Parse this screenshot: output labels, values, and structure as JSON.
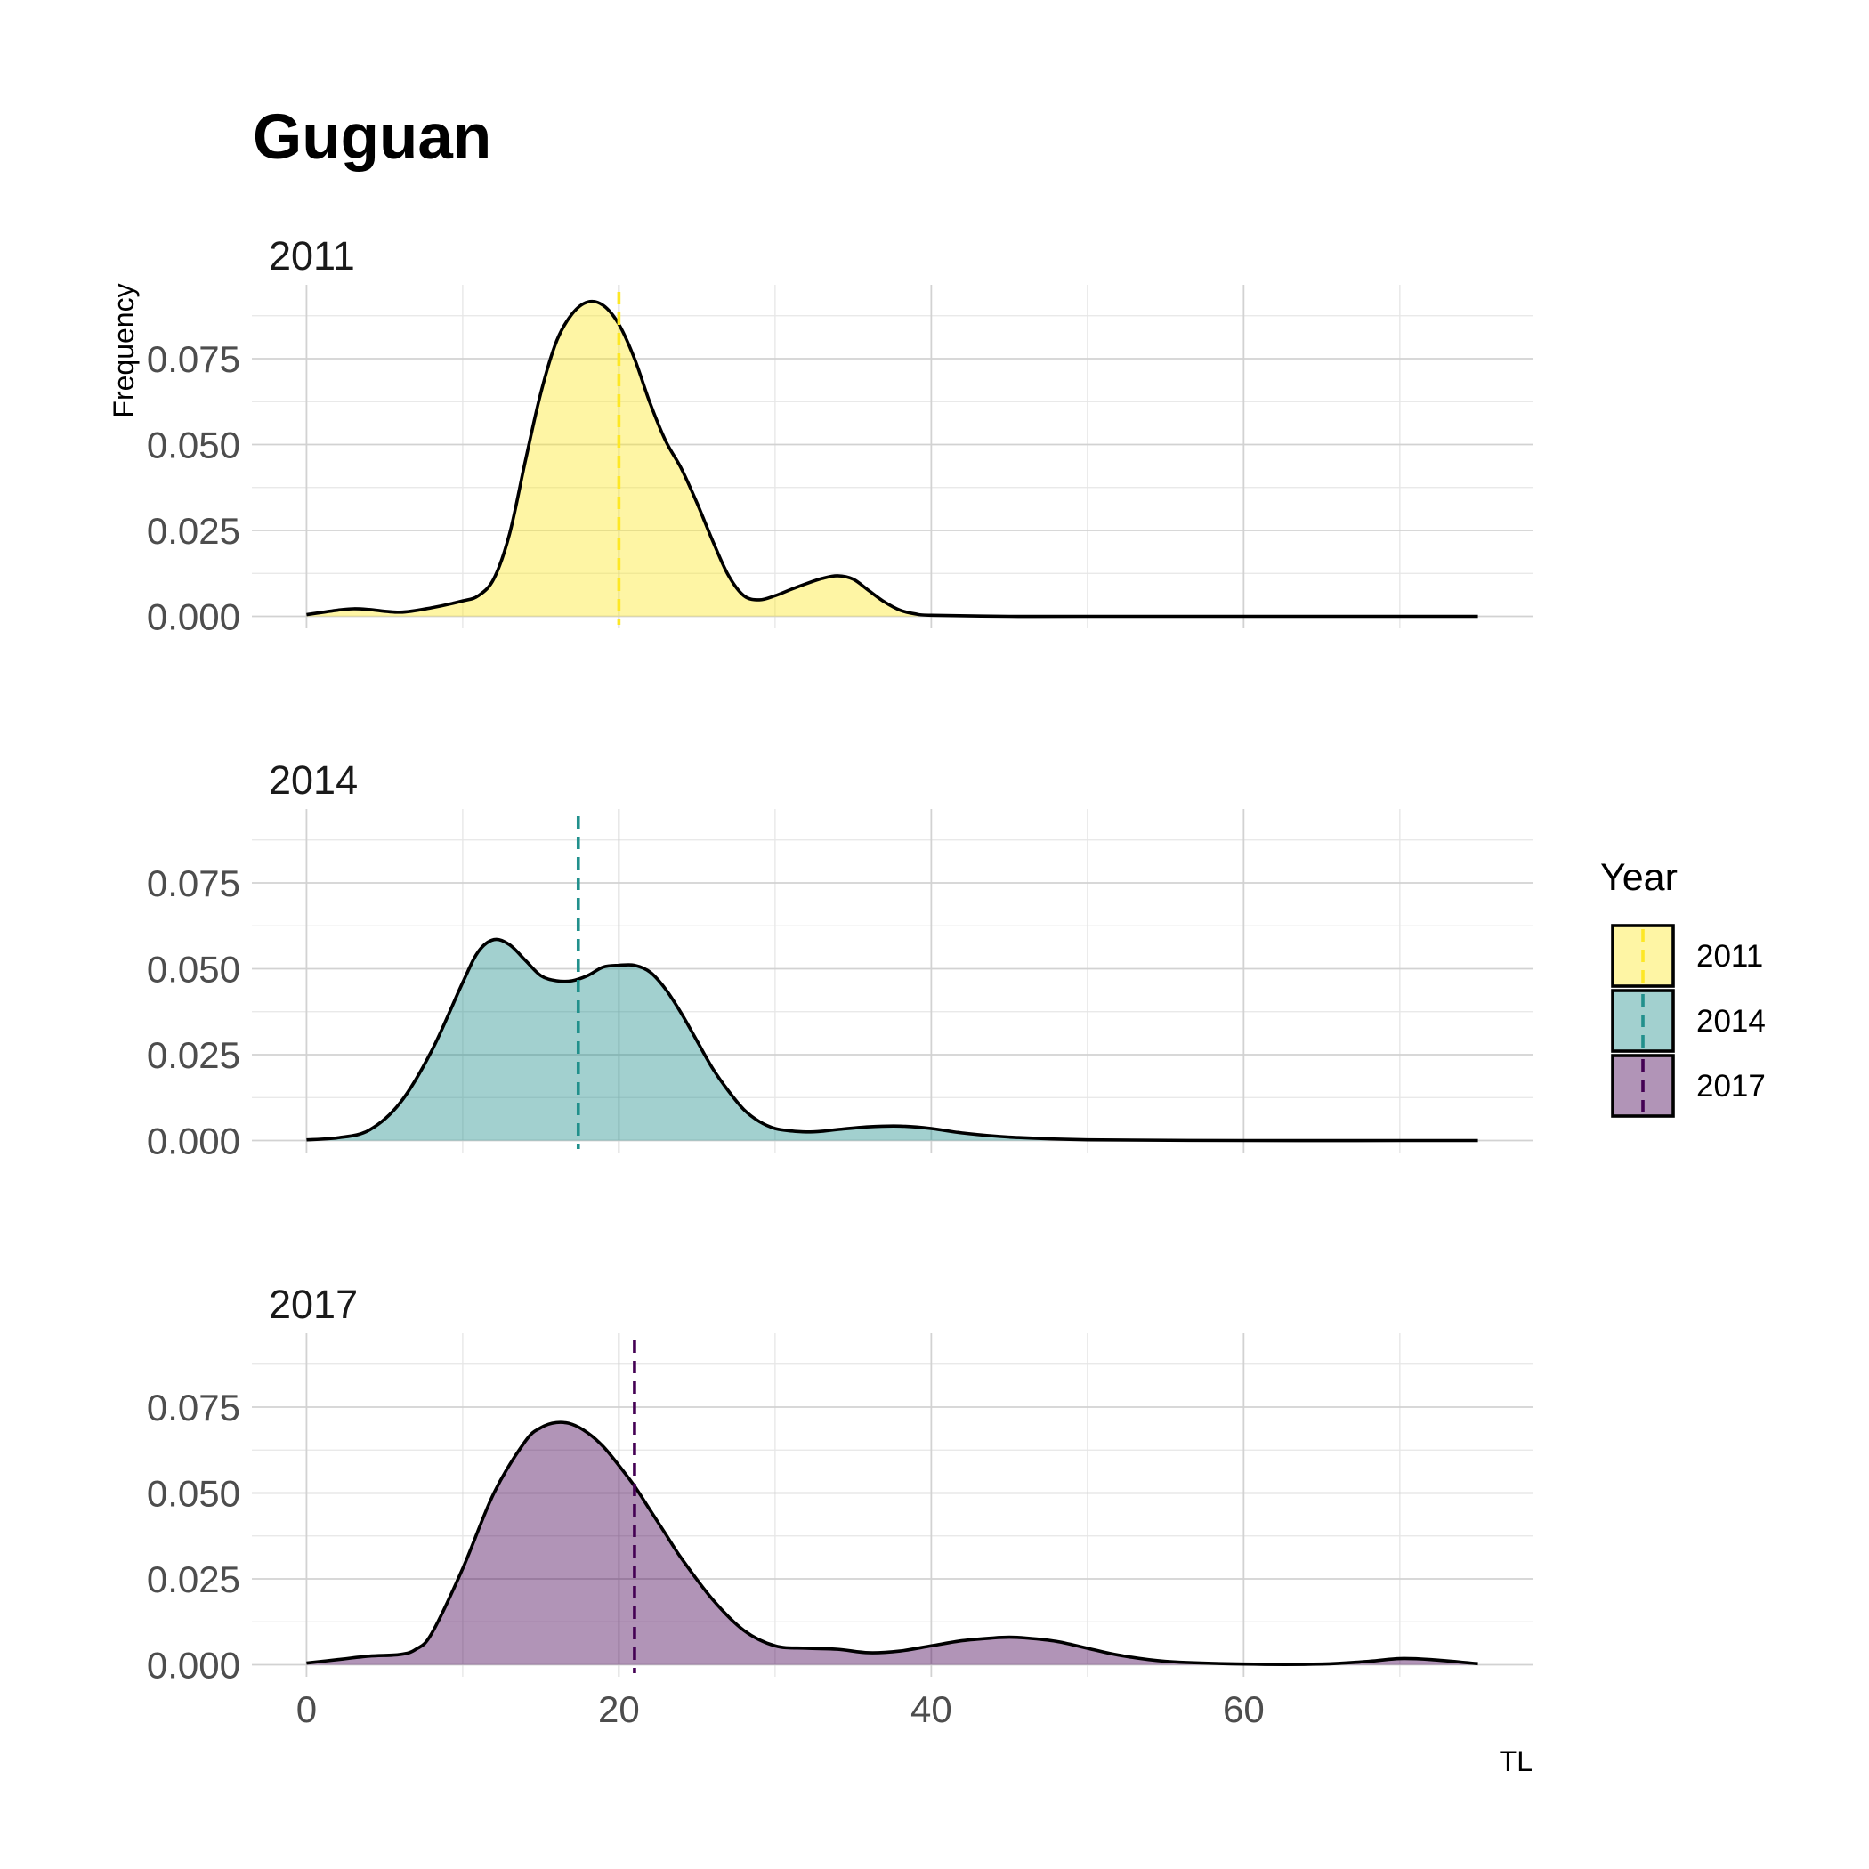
{
  "chart_data": {
    "type": "area",
    "title": "Guguan",
    "xlabel": "TL",
    "ylabel": "Frequency",
    "xlim": [
      -3.5,
      78.5
    ],
    "ylim": [
      -0.0035,
      0.0965
    ],
    "x_ticks": [
      0,
      20,
      40,
      60
    ],
    "y_ticks": [
      0.0,
      0.025,
      0.05,
      0.075
    ],
    "y_tick_labels": [
      "0.000",
      "0.025",
      "0.050",
      "0.075"
    ],
    "grid": true,
    "legend": {
      "title": "Year",
      "position": "right",
      "entries": [
        "2011",
        "2014",
        "2017"
      ]
    },
    "panels": [
      {
        "label": "2011",
        "fill": "#FDE725",
        "mean_line_color": "#FDE725",
        "mean_TL": 20.0,
        "x": [
          0,
          2,
          3,
          4,
          6,
          8,
          10,
          11,
          12,
          13,
          14,
          15,
          16,
          17,
          18,
          19,
          20,
          21,
          22,
          23,
          24,
          25,
          26,
          27,
          28,
          29,
          30,
          31,
          32,
          33,
          34,
          35,
          36,
          37,
          38,
          39,
          40,
          45,
          50,
          60,
          70,
          75
        ],
        "y": [
          0.0005,
          0.0018,
          0.0022,
          0.002,
          0.0012,
          0.0025,
          0.0045,
          0.006,
          0.011,
          0.024,
          0.045,
          0.065,
          0.08,
          0.088,
          0.0915,
          0.0905,
          0.085,
          0.075,
          0.062,
          0.051,
          0.043,
          0.033,
          0.022,
          0.012,
          0.006,
          0.0048,
          0.006,
          0.0078,
          0.0095,
          0.011,
          0.0118,
          0.0108,
          0.0075,
          0.0042,
          0.0018,
          0.0007,
          0.0003,
          0.0,
          0.0,
          0.0,
          0.0,
          0.0
        ]
      },
      {
        "label": "2014",
        "fill": "#21908C",
        "mean_line_color": "#21908C",
        "mean_TL": 17.4,
        "x": [
          0,
          2,
          4,
          6,
          8,
          10,
          11,
          12,
          13,
          14,
          15,
          16,
          17,
          18,
          19,
          20,
          21,
          22,
          23,
          24,
          25,
          26,
          27,
          28,
          29,
          30,
          31,
          32,
          33,
          34,
          36,
          38,
          40,
          42,
          45,
          50,
          60,
          70,
          75
        ],
        "y": [
          0.0002,
          0.0008,
          0.003,
          0.011,
          0.026,
          0.046,
          0.055,
          0.0585,
          0.057,
          0.0525,
          0.048,
          0.0465,
          0.0465,
          0.048,
          0.0505,
          0.051,
          0.051,
          0.049,
          0.044,
          0.037,
          0.029,
          0.021,
          0.0145,
          0.009,
          0.0055,
          0.0035,
          0.0028,
          0.0025,
          0.0027,
          0.0032,
          0.004,
          0.0042,
          0.0035,
          0.0022,
          0.001,
          0.0002,
          0.0,
          0.0,
          0.0
        ]
      },
      {
        "label": "2017",
        "fill": "#440154",
        "mean_line_color": "#440154",
        "mean_TL": 21.0,
        "x": [
          0,
          2,
          4,
          6,
          7,
          8,
          10,
          12,
          14,
          15,
          16,
          17,
          18,
          19,
          20,
          21,
          22,
          23,
          24,
          26,
          28,
          30,
          32,
          34,
          36,
          38,
          40,
          42,
          44,
          45,
          46,
          48,
          50,
          52,
          55,
          60,
          65,
          68,
          70,
          72,
          75
        ],
        "y": [
          0.0005,
          0.0015,
          0.0025,
          0.003,
          0.0045,
          0.009,
          0.028,
          0.05,
          0.065,
          0.069,
          0.0705,
          0.07,
          0.0675,
          0.0635,
          0.058,
          0.052,
          0.045,
          0.038,
          0.031,
          0.019,
          0.01,
          0.0055,
          0.0048,
          0.0045,
          0.0035,
          0.004,
          0.0055,
          0.007,
          0.0078,
          0.008,
          0.0078,
          0.0068,
          0.0048,
          0.0028,
          0.001,
          0.0002,
          0.0002,
          0.001,
          0.0018,
          0.0015,
          0.0003
        ]
      }
    ]
  }
}
